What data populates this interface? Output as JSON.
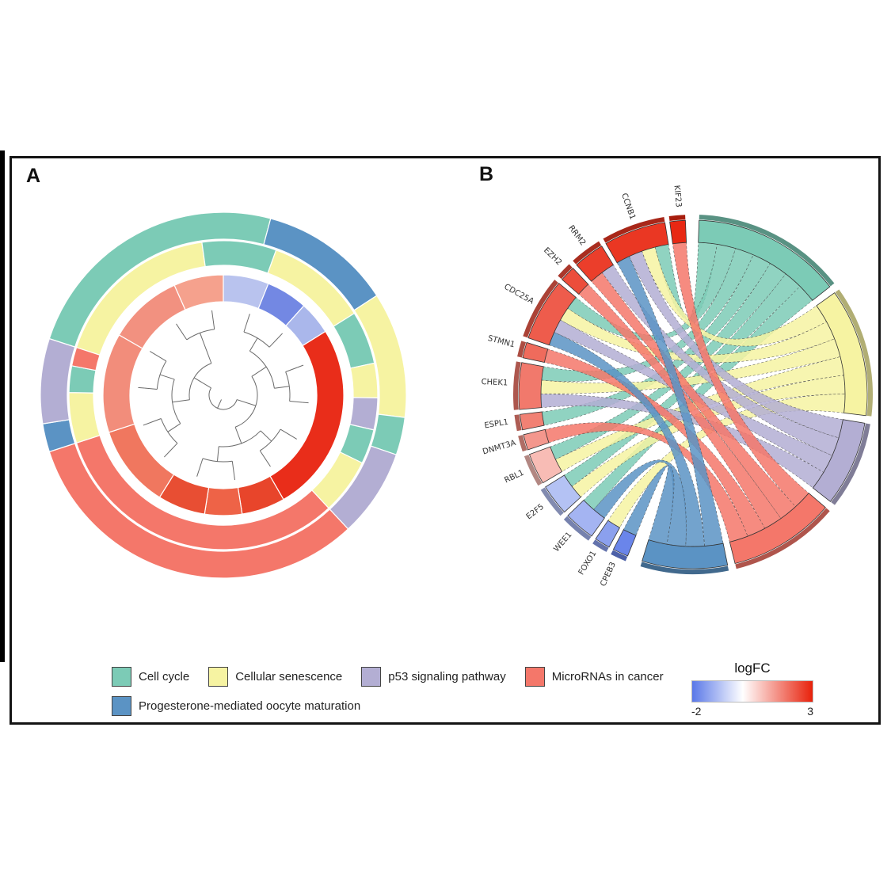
{
  "figure": {
    "panels": [
      {
        "label": "A",
        "type": "GOCluster circular dendrogram with logFC and pathway rings"
      },
      {
        "label": "B",
        "type": "GOChord gene-pathway chord diagram"
      }
    ]
  },
  "legend": {
    "items": [
      {
        "key": "cellcycle",
        "label": "Cell cycle"
      },
      {
        "key": "senescence",
        "label": "Cellular senescence"
      },
      {
        "key": "p53",
        "label": "p53 signaling pathway"
      },
      {
        "key": "mirna",
        "label": "MicroRNAs in cancer"
      },
      {
        "key": "progesterone",
        "label": "Progesterone-mediated oocyte maturation"
      }
    ],
    "logfc": {
      "title": "logFC",
      "min": -2,
      "max": 3,
      "min_label": "-2",
      "max_label": "3"
    }
  },
  "colors": {
    "cellcycle": "#7ccbb6",
    "senescence": "#f6f3a2",
    "p53": "#b3aed3",
    "mirna": "#f4776a",
    "progesterone": "#5b93c4",
    "logfc_neg": "#5a78e8",
    "logfc_pos": "#e8210b"
  },
  "chart_data": [
    {
      "type": "heatmap",
      "panel": "A",
      "description": "Circular cluster plot: central hierarchical clustering dendrogram of DEGs, inner logFC heatmap ring, two outer KEGG pathway membership rings. Angles in degrees clockwise from 12 o'clock.",
      "n_leaves": 14,
      "pathway_ring_outer": [
        {
          "s": 288,
          "e": 375,
          "p": "cellcycle"
        },
        {
          "s": 15,
          "e": 57,
          "p": "progesterone"
        },
        {
          "s": 57,
          "e": 97,
          "p": "senescence"
        },
        {
          "s": 97,
          "e": 109,
          "p": "cellcycle"
        },
        {
          "s": 109,
          "e": 137,
          "p": "p53"
        },
        {
          "s": 137,
          "e": 252,
          "p": "mirna"
        },
        {
          "s": 252,
          "e": 261,
          "p": "progesterone"
        },
        {
          "s": 261,
          "e": 288,
          "p": "p53"
        }
      ],
      "pathway_ring_inner": [
        {
          "s": 288,
          "e": 352,
          "p": "senescence"
        },
        {
          "s": 352,
          "e": 380,
          "p": "cellcycle"
        },
        {
          "s": 20,
          "e": 58,
          "p": "senescence"
        },
        {
          "s": 58,
          "e": 78,
          "p": "cellcycle"
        },
        {
          "s": 78,
          "e": 91,
          "p": "senescence"
        },
        {
          "s": 91,
          "e": 103,
          "p": "p53"
        },
        {
          "s": 103,
          "e": 116,
          "p": "cellcycle"
        },
        {
          "s": 116,
          "e": 137,
          "p": "senescence"
        },
        {
          "s": 137,
          "e": 252,
          "p": "mirna"
        },
        {
          "s": 252,
          "e": 271,
          "p": "senescence"
        },
        {
          "s": 271,
          "e": 281,
          "p": "cellcycle"
        },
        {
          "s": 281,
          "e": 288,
          "p": "mirna"
        }
      ],
      "logfc_ring": [
        {
          "s": 300,
          "e": 336,
          "c": "#f29180"
        },
        {
          "s": 336,
          "e": 360,
          "c": "#f5a18d"
        },
        {
          "s": 0,
          "e": 22,
          "c": "#b9c3ee"
        },
        {
          "s": 22,
          "e": 42,
          "c": "#7388e3"
        },
        {
          "s": 42,
          "e": 58,
          "c": "#aab7eb"
        },
        {
          "s": 58,
          "e": 150,
          "c": "#e92d1a"
        },
        {
          "s": 150,
          "e": 171,
          "c": "#e8452b"
        },
        {
          "s": 171,
          "e": 189,
          "c": "#ee6347"
        },
        {
          "s": 189,
          "e": 212,
          "c": "#e84e33"
        },
        {
          "s": 212,
          "e": 252,
          "c": "#f0775f"
        },
        {
          "s": 252,
          "e": 300,
          "c": "#f28d7b"
        }
      ]
    },
    {
      "type": "chord",
      "panel": "B",
      "description": "Chord diagram linking DEGs (arcs colored by logFC, left half) to KEGG pathways (right half); ribbons colored by pathway.",
      "pathway_order": [
        "cellcycle",
        "senescence",
        "p53",
        "mirna",
        "progesterone"
      ],
      "genes": [
        {
          "name": "KIF23",
          "logFC": 2.9,
          "pathways": [
            "mirna"
          ]
        },
        {
          "name": "CCNB1",
          "logFC": 2.7,
          "pathways": [
            "cellcycle",
            "senescence",
            "p53",
            "progesterone"
          ]
        },
        {
          "name": "RRM2",
          "logFC": 2.6,
          "pathways": [
            "p53",
            "mirna"
          ]
        },
        {
          "name": "EZH2",
          "logFC": 2.4,
          "pathways": [
            "mirna"
          ]
        },
        {
          "name": "CDC25A",
          "logFC": 2.2,
          "pathways": [
            "cellcycle",
            "senescence",
            "p53",
            "progesterone"
          ]
        },
        {
          "name": "STMN1",
          "logFC": 2.0,
          "pathways": [
            "mirna"
          ]
        },
        {
          "name": "CHEK1",
          "logFC": 1.8,
          "pathways": [
            "cellcycle",
            "senescence",
            "p53"
          ]
        },
        {
          "name": "ESPL1",
          "logFC": 1.7,
          "pathways": [
            "cellcycle"
          ]
        },
        {
          "name": "DNMT3A",
          "logFC": 1.4,
          "pathways": [
            "mirna"
          ]
        },
        {
          "name": "RBL1",
          "logFC": 0.9,
          "pathways": [
            "cellcycle",
            "senescence"
          ]
        },
        {
          "name": "E2F5",
          "logFC": -0.9,
          "pathways": [
            "cellcycle",
            "senescence"
          ]
        },
        {
          "name": "WEE1",
          "logFC": -1.1,
          "pathways": [
            "cellcycle",
            "progesterone"
          ]
        },
        {
          "name": "FOXO1",
          "logFC": -1.4,
          "pathways": [
            "senescence"
          ]
        },
        {
          "name": "CPEB3",
          "logFC": -1.8,
          "pathways": [
            "progesterone"
          ]
        }
      ]
    }
  ]
}
